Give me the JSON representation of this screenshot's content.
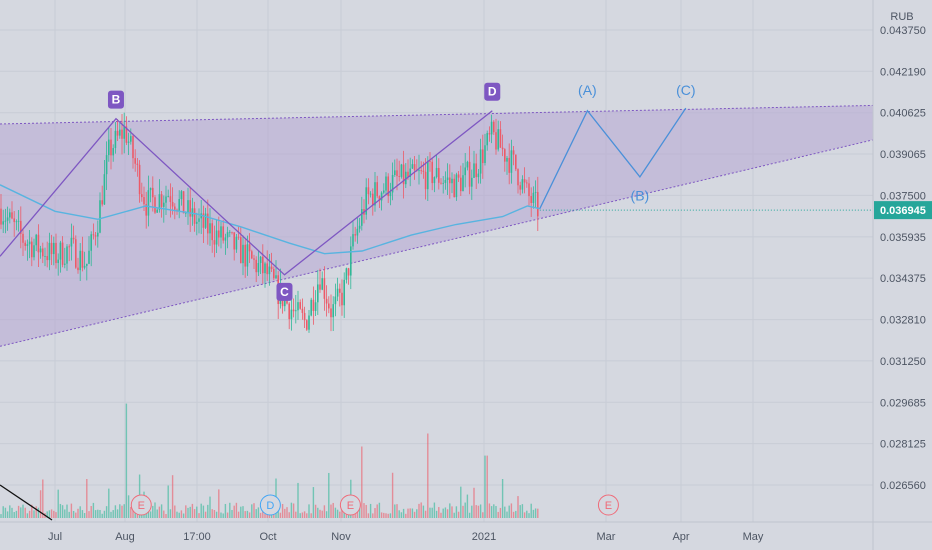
{
  "chart_data": {
    "type": "candlestick",
    "currency_label": "RUB",
    "y_ticks": [
      "0.043750",
      "0.042190",
      "0.040625",
      "0.039065",
      "0.037500",
      "0.035935",
      "0.034375",
      "0.032810",
      "0.031250",
      "0.029685",
      "0.028125",
      "0.026560"
    ],
    "last_price": "0.036945",
    "x_ticks": [
      {
        "label": "Jul",
        "date": "2020-07-01"
      },
      {
        "label": "Aug",
        "date": "2020-08-01"
      },
      {
        "label": "17:00",
        "date": "2020-09-01"
      },
      {
        "label": "Oct",
        "date": "2020-10-01"
      },
      {
        "label": "Nov",
        "date": "2020-11-01"
      },
      {
        "label": "2021",
        "date": "2021-01-01"
      },
      {
        "label": "Mar",
        "date": "2021-03-01"
      },
      {
        "label": "Apr",
        "date": "2021-04-01"
      },
      {
        "label": "May",
        "date": "2021-05-01"
      }
    ],
    "price_path": [
      [
        "2020-06-15",
        0.037
      ],
      [
        "2020-06-22",
        0.0358
      ],
      [
        "2020-07-01",
        0.0352
      ],
      [
        "2020-07-08",
        0.0355
      ],
      [
        "2020-07-15",
        0.0349
      ],
      [
        "2020-07-20",
        0.0366
      ],
      [
        "2020-07-25",
        0.0392
      ],
      [
        "2020-08-01",
        0.04
      ],
      [
        "2020-08-05",
        0.0388
      ],
      [
        "2020-08-10",
        0.0372
      ],
      [
        "2020-08-20",
        0.0376
      ],
      [
        "2020-09-01",
        0.0365
      ],
      [
        "2020-09-15",
        0.0357
      ],
      [
        "2020-10-01",
        0.0345
      ],
      [
        "2020-10-05",
        0.0339
      ],
      [
        "2020-10-12",
        0.0331
      ],
      [
        "2020-10-17",
        0.0327
      ],
      [
        "2020-10-23",
        0.0345
      ],
      [
        "2020-10-28",
        0.0331
      ],
      [
        "2020-11-02",
        0.0338
      ],
      [
        "2020-11-06",
        0.0356
      ],
      [
        "2020-11-12",
        0.0374
      ],
      [
        "2020-11-25",
        0.0381
      ],
      [
        "2020-12-10",
        0.0383
      ],
      [
        "2020-12-20",
        0.0379
      ],
      [
        "2020-12-28",
        0.0385
      ],
      [
        "2021-01-05",
        0.0398
      ],
      [
        "2021-01-10",
        0.0392
      ],
      [
        "2021-01-16",
        0.0386
      ],
      [
        "2021-01-22",
        0.0375
      ],
      [
        "2021-01-28",
        0.0369
      ]
    ],
    "moving_average": [
      [
        "2020-06-15",
        0.0379
      ],
      [
        "2020-07-01",
        0.0369
      ],
      [
        "2020-07-20",
        0.0366
      ],
      [
        "2020-08-10",
        0.0371
      ],
      [
        "2020-09-01",
        0.0368
      ],
      [
        "2020-09-20",
        0.0363
      ],
      [
        "2020-10-10",
        0.0357
      ],
      [
        "2020-10-25",
        0.0353
      ],
      [
        "2020-11-10",
        0.0354
      ],
      [
        "2020-12-01",
        0.036
      ],
      [
        "2020-12-20",
        0.0364
      ],
      [
        "2021-01-10",
        0.0367
      ],
      [
        "2021-01-22",
        0.0371
      ],
      [
        "2021-01-28",
        0.037
      ]
    ],
    "wave_points": [
      {
        "label": "B",
        "date": "2020-07-28",
        "value": 0.0404
      },
      {
        "label": "C",
        "date": "2020-10-08",
        "value": 0.0345
      },
      {
        "label": "D",
        "date": "2021-01-05",
        "value": 0.0407
      }
    ],
    "wave_path": [
      [
        "2020-06-15",
        0.0352
      ],
      [
        "2020-07-28",
        0.0404
      ],
      [
        "2020-10-08",
        0.0345
      ],
      [
        "2021-01-05",
        0.0407
      ]
    ],
    "projection_path": [
      [
        "2021-01-28",
        0.037
      ],
      [
        "2021-02-20",
        0.0407
      ],
      [
        "2021-03-15",
        0.0382
      ],
      [
        "2021-04-03",
        0.0408
      ]
    ],
    "projection_labels": [
      {
        "label": "(A)",
        "date": "2021-02-20",
        "value": 0.0413
      },
      {
        "label": "(B)",
        "date": "2021-03-15",
        "value": 0.0373
      },
      {
        "label": "(C)",
        "date": "2021-04-03",
        "value": 0.0413
      }
    ],
    "triangle": {
      "upper": [
        [
          "2020-06-15",
          0.0402
        ],
        [
          "2021-05-25",
          0.0409
        ]
      ],
      "lower": [
        [
          "2020-06-15",
          0.0318
        ],
        [
          "2021-05-25",
          0.0396
        ]
      ]
    },
    "volume_peaks": [
      [
        "2020-07-15",
        0.3
      ],
      [
        "2020-07-25",
        0.6
      ],
      [
        "2020-08-02",
        0.88
      ],
      [
        "2020-08-20",
        0.25
      ],
      [
        "2020-09-10",
        0.22
      ],
      [
        "2020-10-20",
        0.45
      ],
      [
        "2020-11-10",
        0.55
      ],
      [
        "2020-12-08",
        0.65
      ],
      [
        "2021-01-02",
        0.48
      ],
      [
        "2021-01-10",
        0.3
      ]
    ],
    "event_markers": [
      {
        "label": "E",
        "date": "2020-08-08",
        "kind": "earnings"
      },
      {
        "label": "D",
        "date": "2020-10-02",
        "kind": "dividend"
      },
      {
        "label": "E",
        "date": "2020-11-05",
        "kind": "earnings"
      },
      {
        "label": "E",
        "date": "2021-03-02",
        "kind": "earnings"
      }
    ],
    "colors": {
      "background": "#d5d8e0",
      "grid": "#c8ccd6",
      "up": "#2fb896",
      "down": "#ec5a68",
      "moving_average": "#58b4e0",
      "wave": "#7e57c2",
      "triangle_fill": "#b7a8d4",
      "triangle_line": "#7e57c2",
      "projection": "#4a90d9",
      "last_price_badge": "#26a69a",
      "axis_text": "#4d5563"
    }
  }
}
